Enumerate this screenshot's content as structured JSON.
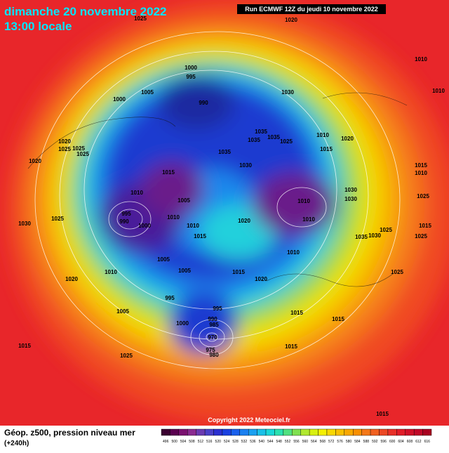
{
  "header": {
    "date": "dimanche 20 novembre 2022",
    "time": "13:00 locale",
    "run": "Run ECMWF 12Z du jeudi 10 novembre 2022"
  },
  "isobar_labels": [
    "1025",
    "1020",
    "1010",
    "1000",
    "995",
    "1005",
    "1000",
    "990",
    "1030",
    "1010",
    "1035",
    "1035",
    "1035",
    "1025",
    "1010",
    "1020",
    "1015",
    "1035",
    "1020",
    "1025",
    "1025",
    "1025",
    "1020",
    "1015",
    "1010",
    "1030",
    "1015",
    "1010",
    "1005",
    "1010",
    "1030",
    "1030",
    "1010",
    "1010",
    "995",
    "990",
    "1000",
    "1010",
    "1020",
    "1025",
    "1015",
    "1025",
    "1025",
    "1030",
    "1035",
    "1030",
    "1025",
    "1015",
    "1010",
    "1005",
    "1005",
    "1015",
    "1010",
    "1020",
    "1020",
    "1025",
    "995",
    "995",
    "1005",
    "1000",
    "990",
    "985",
    "1015",
    "1015",
    "970",
    "975",
    "980",
    "1015",
    "1025",
    "1015",
    "1015"
  ],
  "copyright": "Copyright 2022 Meteociel.fr",
  "legend": {
    "title": "Géop. z500, pression niveau mer",
    "lead": "(+240h)",
    "scale": [
      "496",
      "500",
      "504",
      "508",
      "512",
      "516",
      "520",
      "524",
      "528",
      "532",
      "536",
      "540",
      "544",
      "548",
      "552",
      "556",
      "560",
      "564",
      "568",
      "572",
      "576",
      "580",
      "584",
      "588",
      "592",
      "596",
      "600",
      "604",
      "608",
      "612",
      "616"
    ]
  }
}
